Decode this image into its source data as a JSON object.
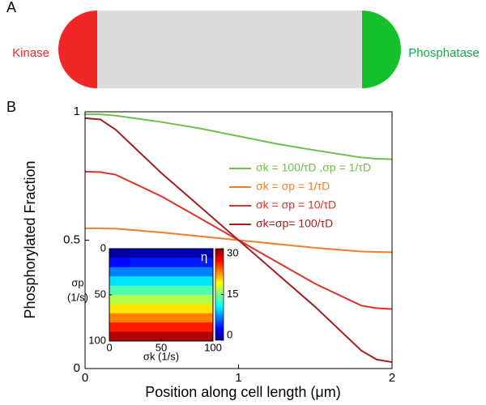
{
  "diagram": {
    "label": "A",
    "left": "Kinase",
    "right": "Phosphatase"
  },
  "chart_data": {
    "type": "line",
    "panel_label": "B",
    "xlabel": "Position along cell length (μm)",
    "ylabel": "Phosphorylated Fraction",
    "x": [
      0,
      0.1,
      0.2,
      0.5,
      0.75,
      1,
      1.25,
      1.5,
      1.8,
      1.9,
      2
    ],
    "xlim": [
      0,
      2
    ],
    "xticks": [
      0,
      1,
      2
    ],
    "ylim": [
      0,
      1
    ],
    "yticks": [
      0,
      0.5,
      1
    ],
    "series": [
      {
        "name": "σk = 100/τD ,σp = 1/τD",
        "color": "#6cc04a",
        "values": [
          0.99,
          0.99,
          0.985,
          0.96,
          0.935,
          0.905,
          0.875,
          0.85,
          0.822,
          0.817,
          0.815
        ]
      },
      {
        "name": "σk = σp = 1/τD",
        "color": "#f07f2a",
        "values": [
          0.546,
          0.546,
          0.545,
          0.53,
          0.515,
          0.5,
          0.485,
          0.47,
          0.456,
          0.454,
          0.453
        ]
      },
      {
        "name": "σk = σp = 10/τD",
        "color": "#e0302a",
        "values": [
          0.767,
          0.765,
          0.755,
          0.67,
          0.585,
          0.5,
          0.415,
          0.33,
          0.245,
          0.235,
          0.232
        ]
      },
      {
        "name": "σk=σp= 100/τD",
        "color": "#a3201f",
        "values": [
          0.975,
          0.97,
          0.93,
          0.76,
          0.63,
          0.5,
          0.37,
          0.24,
          0.07,
          0.035,
          0.025
        ]
      }
    ],
    "inset": {
      "type": "heatmap",
      "xlabel": "σk (1/s)",
      "ylabel": [
        "σp",
        "(1/s)"
      ],
      "clabel": "η",
      "xlim": [
        0,
        100
      ],
      "xticks": [
        0,
        50,
        100
      ],
      "ylim": [
        0,
        100
      ],
      "yticks": [
        0,
        50,
        100
      ],
      "clim": [
        0,
        30
      ],
      "cticks": [
        0,
        15,
        30
      ],
      "z": [
        [
          1,
          1.5,
          1.5,
          1.5,
          1.5
        ],
        [
          4,
          4.5,
          4.5,
          4.5,
          4.5
        ],
        [
          7.5,
          7.5,
          7.5,
          7.5,
          7.5
        ],
        [
          10.5,
          10.5,
          10.5,
          10.5,
          10.5
        ],
        [
          13.5,
          13.5,
          13.5,
          13.5,
          13.5
        ],
        [
          16.5,
          16.5,
          16.5,
          16.5,
          16.5
        ],
        [
          19.5,
          19.5,
          19.5,
          19.5,
          19.5
        ],
        [
          22.5,
          22.5,
          22.5,
          22.5,
          22.5
        ],
        [
          25.5,
          25.5,
          25.5,
          25.5,
          25.5
        ],
        [
          28.5,
          28.5,
          28.5,
          28.5,
          28.5
        ]
      ]
    }
  }
}
